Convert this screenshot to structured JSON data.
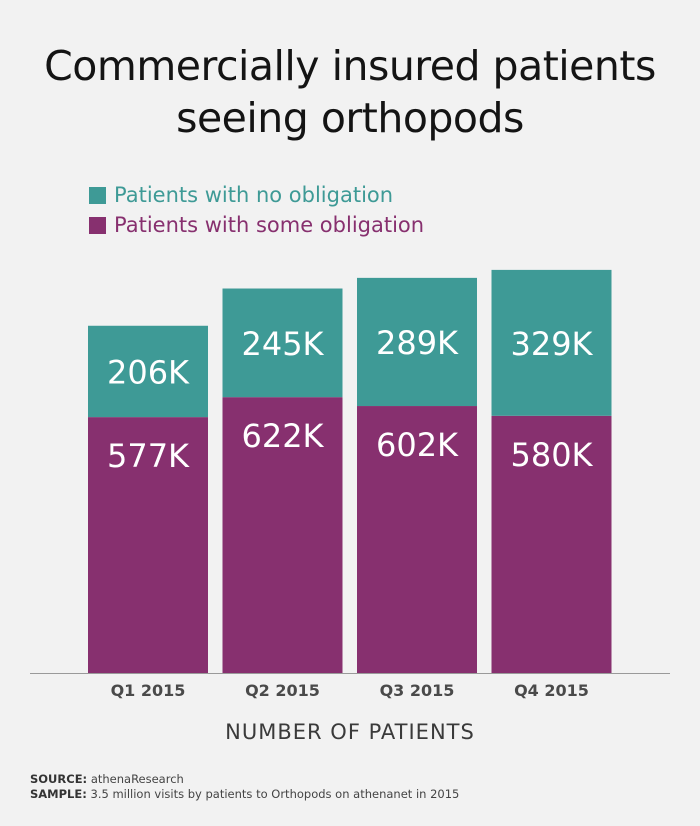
{
  "chart_data": {
    "type": "bar",
    "stacked": true,
    "title": "Commercially insured patients seeing orthopods",
    "categories": [
      "Q1 2015",
      "Q2 2015",
      "Q3 2015",
      "Q4 2015"
    ],
    "series": [
      {
        "name": "Patients with some obligation",
        "values": [
          577,
          622,
          602,
          580
        ],
        "labels": [
          "577K",
          "622K",
          "602K",
          "580K"
        ],
        "color": "#87306f"
      },
      {
        "name": "Patients with no obligation",
        "values": [
          206,
          245,
          289,
          329
        ],
        "labels": [
          "206K",
          "245K",
          "289K",
          "329K"
        ],
        "color": "#3e9a96"
      }
    ],
    "xlabel": "NUMBER OF PATIENTS",
    "ylabel": "",
    "ylim": [
      0,
      911
    ],
    "grid": false,
    "legend": "top-left"
  },
  "footer": {
    "source_label": "SOURCE:",
    "source_text": "athenaResearch",
    "sample_label": "SAMPLE:",
    "sample_text": "3.5 million visits by patients to Orthopods on athenanet in 2015"
  }
}
